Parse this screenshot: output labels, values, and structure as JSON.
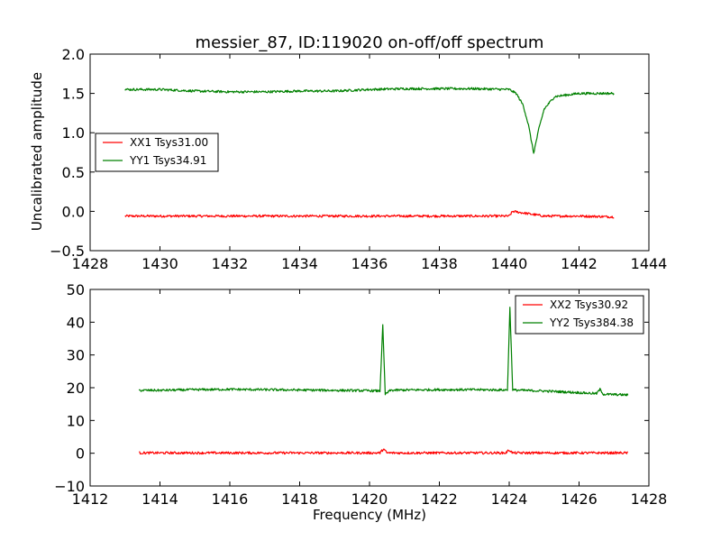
{
  "chart_data": [
    {
      "type": "line",
      "title": "messier_87, ID:119020 on-off/off spectrum",
      "xlabel": "",
      "ylabel": "Uncalibrated amplitude",
      "xlim": [
        1428,
        1444
      ],
      "ylim": [
        -0.5,
        2.0
      ],
      "xticks": [
        "1428",
        "1430",
        "1432",
        "1434",
        "1436",
        "1438",
        "1440",
        "1442",
        "1444"
      ],
      "yticks": [
        "−0.5",
        "0.0",
        "0.5",
        "1.0",
        "1.5",
        "2.0"
      ],
      "legend_position": "center-left",
      "series": [
        {
          "name": "XX1 Tsys31.00",
          "color": "#ff0000",
          "x": [
            1429.0,
            1430.0,
            1431.0,
            1432.0,
            1433.0,
            1434.0,
            1435.0,
            1436.0,
            1437.0,
            1438.0,
            1439.0,
            1440.0,
            1440.1,
            1441.0,
            1442.0,
            1443.0
          ],
          "y": [
            -0.06,
            -0.06,
            -0.06,
            -0.06,
            -0.06,
            -0.06,
            -0.06,
            -0.06,
            -0.06,
            -0.06,
            -0.06,
            -0.06,
            0.0,
            -0.06,
            -0.06,
            -0.07
          ]
        },
        {
          "name": "YY1 Tsys34.91",
          "color": "#008000",
          "x": [
            1429.0,
            1430.0,
            1431.0,
            1432.0,
            1433.0,
            1434.0,
            1435.0,
            1436.0,
            1437.0,
            1438.0,
            1439.0,
            1440.0,
            1440.2,
            1440.4,
            1440.55,
            1440.7,
            1440.85,
            1441.0,
            1441.3,
            1442.0,
            1442.5,
            1443.0
          ],
          "y": [
            1.55,
            1.55,
            1.53,
            1.52,
            1.52,
            1.53,
            1.53,
            1.55,
            1.56,
            1.56,
            1.56,
            1.55,
            1.5,
            1.35,
            1.1,
            0.74,
            1.05,
            1.3,
            1.46,
            1.5,
            1.5,
            1.5
          ]
        }
      ]
    },
    {
      "type": "line",
      "title": "",
      "xlabel": "Frequency (MHz)",
      "ylabel": "",
      "xlim": [
        1412,
        1428
      ],
      "ylim": [
        -10,
        50
      ],
      "xticks": [
        "1412",
        "1414",
        "1416",
        "1418",
        "1420",
        "1422",
        "1424",
        "1426",
        "1428"
      ],
      "yticks": [
        "−10",
        "0",
        "10",
        "20",
        "30",
        "40",
        "50"
      ],
      "legend_position": "top-right",
      "series": [
        {
          "name": "XX2 Tsys30.92",
          "color": "#ff0000",
          "x": [
            1413.4,
            1415.0,
            1417.0,
            1419.0,
            1420.3,
            1420.4,
            1420.5,
            1422.0,
            1423.9,
            1424.0,
            1424.1,
            1426.0,
            1427.4
          ],
          "y": [
            0.1,
            0.1,
            0.1,
            0.1,
            0.1,
            1.3,
            0.1,
            0.1,
            0.1,
            1.0,
            0.1,
            0.1,
            0.1
          ]
        },
        {
          "name": "YY2 Tsys384.38",
          "color": "#008000",
          "x": [
            1413.4,
            1414.0,
            1415.0,
            1416.0,
            1417.0,
            1418.0,
            1419.0,
            1420.0,
            1420.3,
            1420.38,
            1420.45,
            1420.6,
            1421.0,
            1422.0,
            1423.0,
            1423.95,
            1424.02,
            1424.1,
            1425.0,
            1426.0,
            1426.5,
            1426.6,
            1426.7,
            1427.4
          ],
          "y": [
            19.2,
            19.2,
            19.4,
            19.5,
            19.4,
            19.3,
            19.2,
            19.1,
            19.0,
            39.0,
            18.0,
            19.2,
            19.3,
            19.4,
            19.4,
            19.3,
            44.5,
            19.3,
            19.0,
            18.5,
            18.2,
            19.5,
            18.0,
            17.8
          ]
        }
      ]
    }
  ]
}
